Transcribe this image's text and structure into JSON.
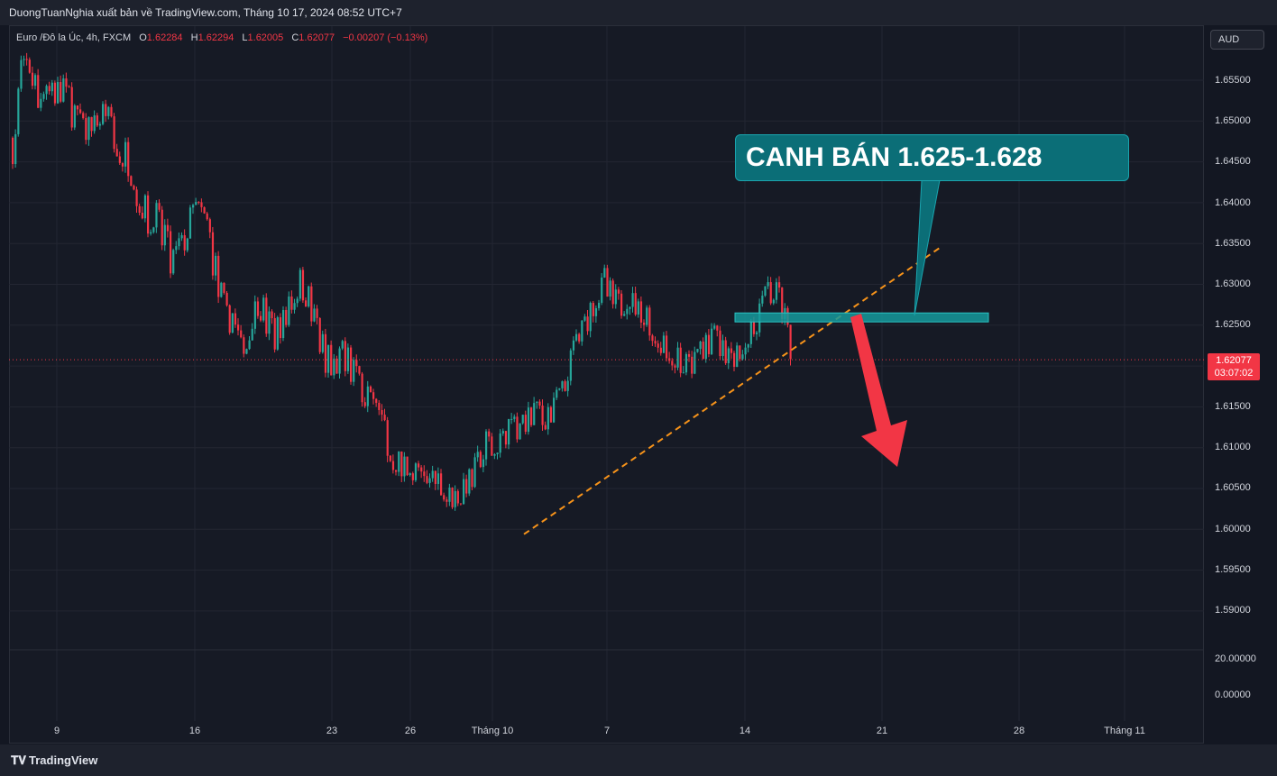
{
  "header": {
    "published": "DuongTuanNghia xuất bản về TradingView.com, Tháng 10 17, 2024 08:52 UTC+7"
  },
  "legend": {
    "symbol": "Euro /Đô la Úc, 4h, FXCM",
    "open_label": "O",
    "open": "1.62284",
    "high_label": "H",
    "high": "1.62294",
    "low_label": "L",
    "low": "1.62005",
    "close_label": "C",
    "close": "1.62077",
    "change": "−0.00207 (−0.13%)"
  },
  "axis": {
    "currency_button": "AUD",
    "price_labels": [
      "1.65500",
      "1.65000",
      "1.64500",
      "1.64000",
      "1.63500",
      "1.63000",
      "1.62500",
      "1.61500",
      "1.61000",
      "1.60500",
      "1.60000",
      "1.59500",
      "1.59000"
    ],
    "indicator_labels": [
      "20.00000",
      "0.00000"
    ],
    "last_price": "1.62077",
    "countdown": "03:07:02"
  },
  "annotation": {
    "callout_text": "CANH BÁN 1.625-1.628",
    "zone_low": 1.6254,
    "zone_high": 1.6265
  },
  "footer": {
    "brand": "TradingView"
  },
  "colors": {
    "up": "#26a69a",
    "down": "#f23645",
    "trendline": "#f7931a",
    "zone": "#159a9c",
    "background": "#161a25"
  },
  "chart_data": {
    "type": "candlestick",
    "timeframe": "4h",
    "x_tick_labels": [
      "9",
      "16",
      "23",
      "26",
      "Tháng 10",
      "7",
      "14",
      "21",
      "28",
      "Tháng 11"
    ],
    "ylim": [
      1.5855,
      1.6585
    ],
    "grid": true,
    "last_close": 1.62077,
    "trendline": {
      "from": 1.5994,
      "to": 1.6347,
      "style": "dashed"
    },
    "path": [
      [
        1.6485,
        1.6445
      ],
      [
        1.6575,
        1.6545
      ],
      [
        1.658,
        1.6555
      ],
      [
        1.6545,
        1.6515
      ],
      [
        1.6565,
        1.654
      ],
      [
        1.6545,
        1.652
      ],
      [
        1.6555,
        1.6525
      ],
      [
        1.6535,
        1.649
      ],
      [
        1.651,
        1.647
      ],
      [
        1.6505,
        1.648
      ],
      [
        1.6515,
        1.649
      ],
      [
        1.653,
        1.65
      ],
      [
        1.6505,
        1.646
      ],
      [
        1.649,
        1.644
      ],
      [
        1.647,
        1.642
      ],
      [
        1.643,
        1.638
      ],
      [
        1.64,
        1.636
      ],
      [
        1.6405,
        1.637
      ],
      [
        1.638,
        1.633
      ],
      [
        1.635,
        1.63
      ],
      [
        1.6365,
        1.633
      ],
      [
        1.6395,
        1.636
      ],
      [
        1.6405,
        1.6375
      ],
      [
        1.6385,
        1.634
      ],
      [
        1.6345,
        1.629
      ],
      [
        1.629,
        1.625
      ],
      [
        1.6265,
        1.623
      ],
      [
        1.624,
        1.62
      ],
      [
        1.6265,
        1.623
      ],
      [
        1.629,
        1.626
      ],
      [
        1.6285,
        1.623
      ],
      [
        1.6255,
        1.6215
      ],
      [
        1.627,
        1.6235
      ],
      [
        1.63,
        1.6265
      ],
      [
        1.632,
        1.629
      ],
      [
        1.63,
        1.626
      ],
      [
        1.6265,
        1.623
      ],
      [
        1.6235,
        1.619
      ],
      [
        1.6215,
        1.618
      ],
      [
        1.6235,
        1.62
      ],
      [
        1.622,
        1.618
      ],
      [
        1.6195,
        1.616
      ],
      [
        1.6175,
        1.6145
      ],
      [
        1.6155,
        1.6115
      ],
      [
        1.6135,
        1.6095
      ],
      [
        1.611,
        1.607
      ],
      [
        1.609,
        1.606
      ],
      [
        1.61,
        1.6065
      ],
      [
        1.608,
        1.6045
      ],
      [
        1.606,
        1.6035
      ],
      [
        1.608,
        1.605
      ],
      [
        1.606,
        1.6035
      ],
      [
        1.605,
        1.6025
      ],
      [
        1.6055,
        1.603
      ],
      [
        1.6075,
        1.6045
      ],
      [
        1.61,
        1.6065
      ],
      [
        1.612,
        1.609
      ],
      [
        1.6115,
        1.609
      ],
      [
        1.6125,
        1.61
      ],
      [
        1.614,
        1.611
      ],
      [
        1.6135,
        1.6105
      ],
      [
        1.6155,
        1.612
      ],
      [
        1.616,
        1.613
      ],
      [
        1.6145,
        1.612
      ],
      [
        1.6165,
        1.6135
      ],
      [
        1.6185,
        1.6155
      ],
      [
        1.6225,
        1.6185
      ],
      [
        1.6255,
        1.6225
      ],
      [
        1.627,
        1.624
      ],
      [
        1.63,
        1.6265
      ],
      [
        1.632,
        1.6285
      ],
      [
        1.6305,
        1.627
      ],
      [
        1.6285,
        1.626
      ],
      [
        1.63,
        1.627
      ],
      [
        1.6285,
        1.6255
      ],
      [
        1.6275,
        1.624
      ],
      [
        1.6255,
        1.6225
      ],
      [
        1.624,
        1.621
      ],
      [
        1.6235,
        1.62
      ],
      [
        1.6225,
        1.619
      ],
      [
        1.6215,
        1.6185
      ],
      [
        1.6225,
        1.6195
      ],
      [
        1.624,
        1.621
      ],
      [
        1.6255,
        1.622
      ],
      [
        1.6235,
        1.62
      ],
      [
        1.622,
        1.6195
      ],
      [
        1.6235,
        1.6205
      ],
      [
        1.625,
        1.6225
      ],
      [
        1.6265,
        1.624
      ],
      [
        1.63,
        1.6265
      ],
      [
        1.631,
        1.628
      ],
      [
        1.629,
        1.625
      ],
      [
        1.624,
        1.6208
      ]
    ]
  }
}
